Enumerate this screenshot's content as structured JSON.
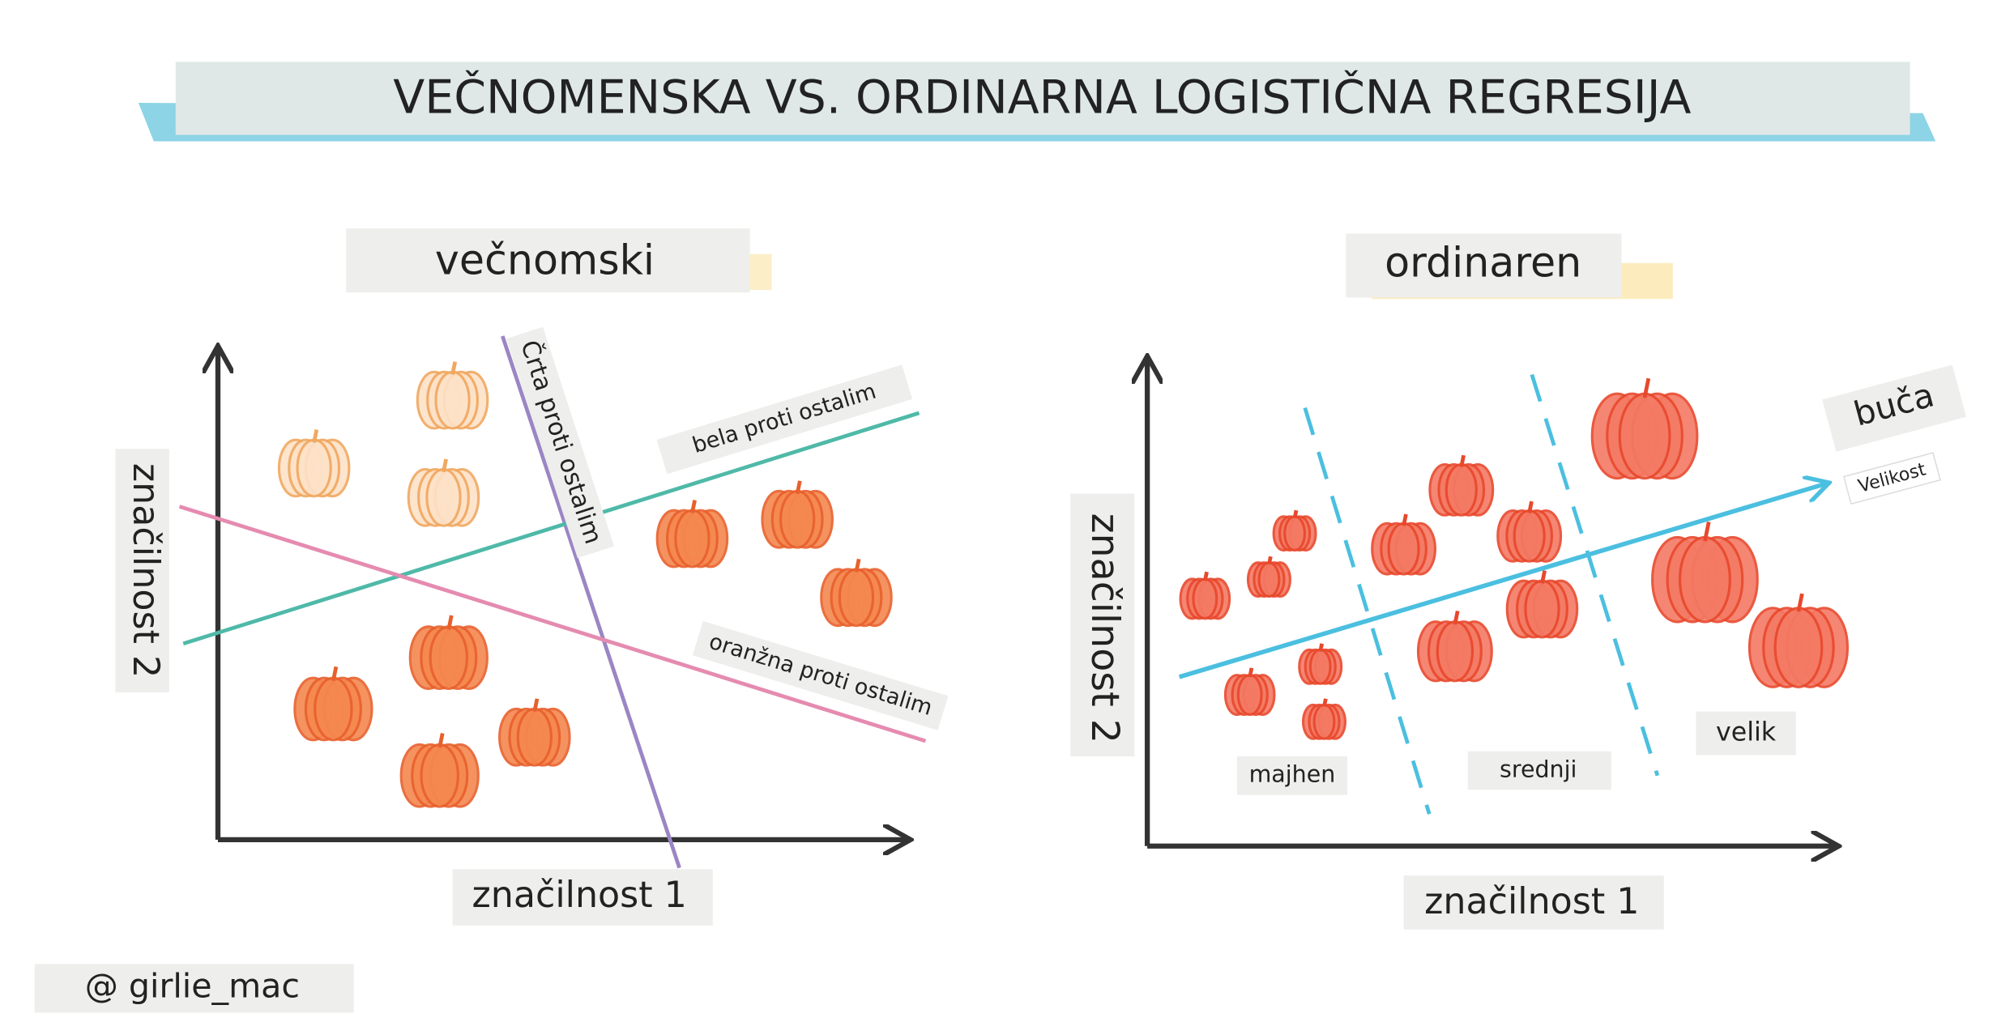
{
  "title": "VEČNOMENSKA VS. ORDINARNA LOGISTIČNA REGRESIJA",
  "multinomial": {
    "heading": "večnomski",
    "y_axis": "značilnost 2",
    "x_axis": "značilnost 1",
    "line_purple": "Črta proti ostalim",
    "line_teal": "bela proti ostalim",
    "line_pink": "oranžna proti ostalim"
  },
  "ordinal": {
    "heading": "ordinaren",
    "y_axis": "značilnost 2",
    "x_axis": "značilnost 1",
    "arrow_label": "buča",
    "arrow_sublabel": "Velikost",
    "classes": [
      "majhen",
      "srednji",
      "velik"
    ]
  },
  "credit": "@ girlie_mac"
}
